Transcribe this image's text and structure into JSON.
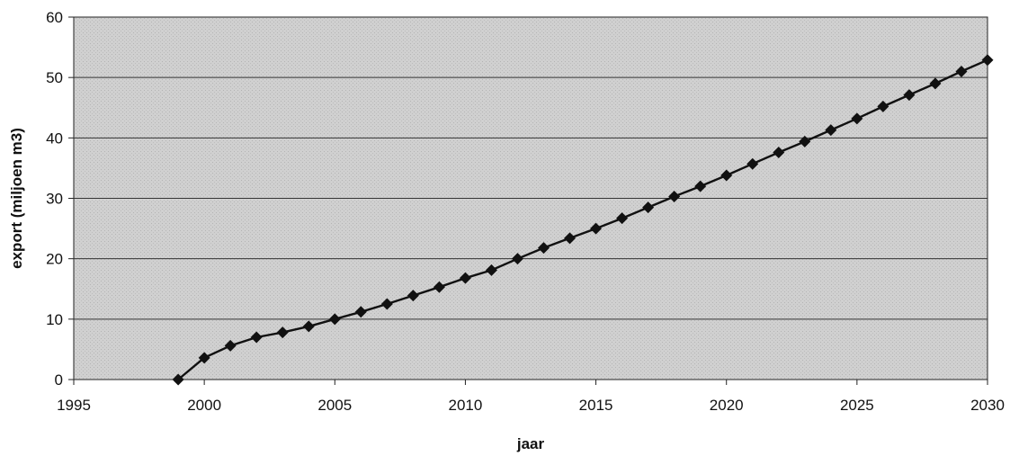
{
  "chart_data": {
    "type": "line",
    "title": "",
    "xlabel": "jaar",
    "ylabel": "export (miljoen m3)",
    "xlim": [
      1995,
      2030
    ],
    "ylim": [
      0,
      60
    ],
    "xticks": [
      1995,
      2000,
      2005,
      2010,
      2015,
      2020,
      2025,
      2030
    ],
    "yticks": [
      0,
      10,
      20,
      30,
      40,
      50,
      60
    ],
    "grid": "horizontal",
    "legend": "none",
    "colors": {
      "plot_background": "#d3d3d3",
      "line": "#111111",
      "marker": "#111111"
    },
    "marker": "diamond",
    "series": [
      {
        "x": [
          1999,
          2000,
          2001,
          2002,
          2003,
          2004,
          2005,
          2006,
          2007,
          2008,
          2009,
          2010,
          2011,
          2012,
          2013,
          2014,
          2015,
          2016,
          2017,
          2018,
          2019,
          2020,
          2021,
          2022,
          2023,
          2024,
          2025,
          2026,
          2027,
          2028,
          2029,
          2030
        ],
        "values": [
          0,
          3.6,
          5.6,
          7.0,
          7.8,
          8.8,
          10.0,
          11.2,
          12.5,
          13.9,
          15.3,
          16.8,
          18.1,
          20.0,
          21.8,
          23.4,
          25.0,
          26.7,
          28.5,
          30.3,
          32.0,
          33.8,
          35.7,
          37.6,
          39.4,
          41.3,
          43.2,
          45.2,
          47.1,
          49.0,
          51.0,
          52.9
        ]
      }
    ]
  }
}
